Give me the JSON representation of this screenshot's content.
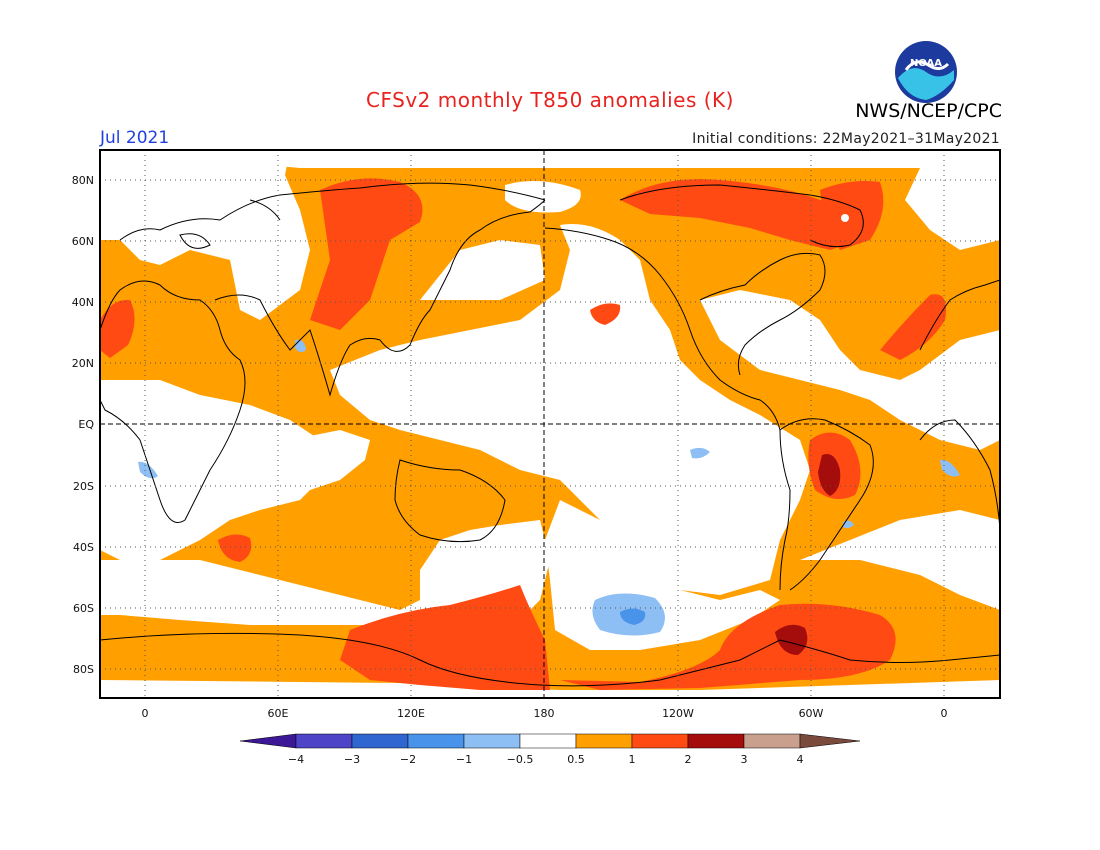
{
  "header": {
    "title": "CFSv2 monthly T850 anomalies (K)",
    "agency": "NWS/NCEP/CPC",
    "logo_text": "NOAA",
    "month": "Jul 2021",
    "initial_conditions": "Initial conditions: 22May2021–31May2021"
  },
  "axes": {
    "lat_labels": [
      "80N",
      "60N",
      "40N",
      "20N",
      "EQ",
      "20S",
      "40S",
      "60S",
      "80S"
    ],
    "lon_labels": [
      "0",
      "60E",
      "120E",
      "180",
      "120W",
      "60W",
      "0"
    ]
  },
  "colorbar": {
    "labels": [
      "−4",
      "−3",
      "−2",
      "−1",
      "−0.5",
      "0.5",
      "1",
      "2",
      "3",
      "4"
    ],
    "colors": [
      "#3c1796",
      "#4e44c8",
      "#2f66cf",
      "#4994ea",
      "#8ebff4",
      "#ffffff",
      "#ff9f00",
      "#ff4a14",
      "#a50d0d",
      "#c9a08e",
      "#7a4a3c"
    ]
  },
  "map": {
    "colors": {
      "pos1": "#ff9f00",
      "pos2": "#ff4a14",
      "pos3": "#a50d0d",
      "neg1": "#8ebff4",
      "neg2": "#4994ea"
    }
  }
}
